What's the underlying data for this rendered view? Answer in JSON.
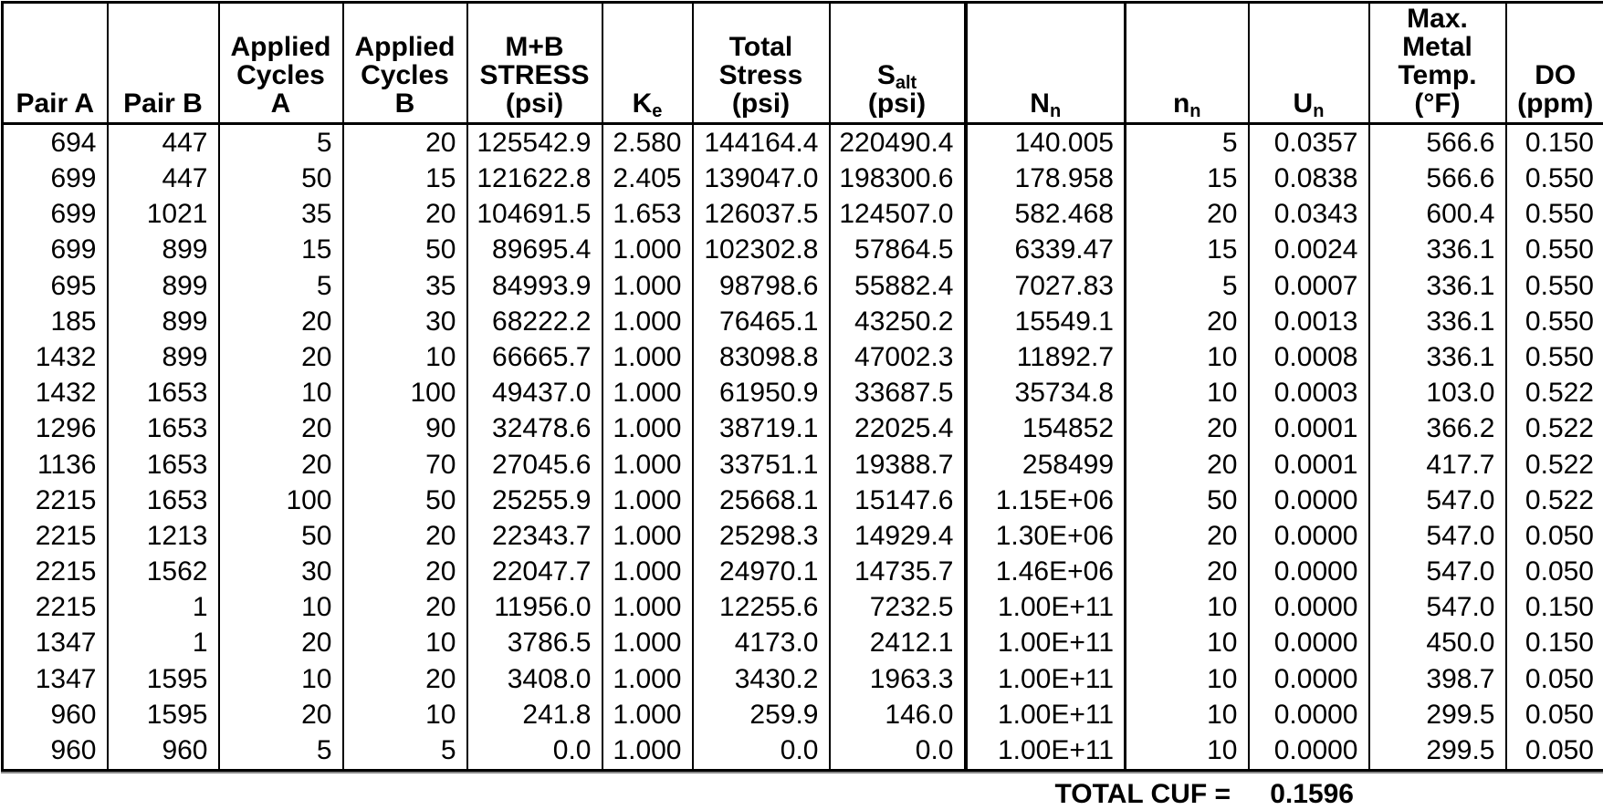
{
  "header": [
    {
      "id": "pair_a",
      "lines": [
        "Pair A"
      ]
    },
    {
      "id": "pair_b",
      "lines": [
        "Pair B"
      ]
    },
    {
      "id": "applied_cycles_a",
      "lines": [
        "Applied",
        "Cycles",
        "A"
      ]
    },
    {
      "id": "applied_cycles_b",
      "lines": [
        "Applied",
        "Cycles",
        "B"
      ]
    },
    {
      "id": "mb_stress",
      "lines": [
        "M+B",
        "STRESS",
        "(psi)"
      ]
    },
    {
      "id": "ke",
      "main": "K",
      "sub": "e"
    },
    {
      "id": "total_stress",
      "lines": [
        "Total",
        "Stress",
        "(psi)"
      ]
    },
    {
      "id": "s_alt",
      "main": "S",
      "sub": "alt",
      "unit": "(psi)"
    },
    {
      "id": "n_cap",
      "main": "N",
      "sub": "n"
    },
    {
      "id": "n_small",
      "main": "n",
      "sub": "n"
    },
    {
      "id": "u_n",
      "main": "U",
      "sub": "n"
    },
    {
      "id": "max_metal_temp",
      "lines": [
        "Max.",
        "Metal",
        "Temp.",
        "(°F)"
      ]
    },
    {
      "id": "do_ppm",
      "lines": [
        "DO",
        "(ppm)"
      ]
    }
  ],
  "chart_data": {
    "type": "table",
    "columns": [
      "Pair A",
      "Pair B",
      "Applied Cycles A",
      "Applied Cycles B",
      "M+B STRESS (psi)",
      "Ke",
      "Total Stress (psi)",
      "Salt (psi)",
      "Nn",
      "nn",
      "Un",
      "Max. Metal Temp. (°F)",
      "DO (ppm)"
    ],
    "column_ids": [
      "pair_a",
      "pair_b",
      "applied_cycles_a",
      "applied_cycles_b",
      "mb_stress",
      "ke",
      "total_stress",
      "s_alt",
      "n_cap",
      "n_small",
      "u_n",
      "max_metal_temp",
      "do_ppm"
    ],
    "rows": [
      [
        "694",
        "447",
        "5",
        "20",
        "125542.9",
        "2.580",
        "144164.4",
        "220490.4",
        "140.005",
        "5",
        "0.0357",
        "566.6",
        "0.150"
      ],
      [
        "699",
        "447",
        "50",
        "15",
        "121622.8",
        "2.405",
        "139047.0",
        "198300.6",
        "178.958",
        "15",
        "0.0838",
        "566.6",
        "0.550"
      ],
      [
        "699",
        "1021",
        "35",
        "20",
        "104691.5",
        "1.653",
        "126037.5",
        "124507.0",
        "582.468",
        "20",
        "0.0343",
        "600.4",
        "0.550"
      ],
      [
        "699",
        "899",
        "15",
        "50",
        "89695.4",
        "1.000",
        "102302.8",
        "57864.5",
        "6339.47",
        "15",
        "0.0024",
        "336.1",
        "0.550"
      ],
      [
        "695",
        "899",
        "5",
        "35",
        "84993.9",
        "1.000",
        "98798.6",
        "55882.4",
        "7027.83",
        "5",
        "0.0007",
        "336.1",
        "0.550"
      ],
      [
        "185",
        "899",
        "20",
        "30",
        "68222.2",
        "1.000",
        "76465.1",
        "43250.2",
        "15549.1",
        "20",
        "0.0013",
        "336.1",
        "0.550"
      ],
      [
        "1432",
        "899",
        "20",
        "10",
        "66665.7",
        "1.000",
        "83098.8",
        "47002.3",
        "11892.7",
        "10",
        "0.0008",
        "336.1",
        "0.550"
      ],
      [
        "1432",
        "1653",
        "10",
        "100",
        "49437.0",
        "1.000",
        "61950.9",
        "33687.5",
        "35734.8",
        "10",
        "0.0003",
        "103.0",
        "0.522"
      ],
      [
        "1296",
        "1653",
        "20",
        "90",
        "32478.6",
        "1.000",
        "38719.1",
        "22025.4",
        "154852",
        "20",
        "0.0001",
        "366.2",
        "0.522"
      ],
      [
        "1136",
        "1653",
        "20",
        "70",
        "27045.6",
        "1.000",
        "33751.1",
        "19388.7",
        "258499",
        "20",
        "0.0001",
        "417.7",
        "0.522"
      ],
      [
        "2215",
        "1653",
        "100",
        "50",
        "25255.9",
        "1.000",
        "25668.1",
        "15147.6",
        "1.15E+06",
        "50",
        "0.0000",
        "547.0",
        "0.522"
      ],
      [
        "2215",
        "1213",
        "50",
        "20",
        "22343.7",
        "1.000",
        "25298.3",
        "14929.4",
        "1.30E+06",
        "20",
        "0.0000",
        "547.0",
        "0.050"
      ],
      [
        "2215",
        "1562",
        "30",
        "20",
        "22047.7",
        "1.000",
        "24970.1",
        "14735.7",
        "1.46E+06",
        "20",
        "0.0000",
        "547.0",
        "0.050"
      ],
      [
        "2215",
        "1",
        "10",
        "20",
        "11956.0",
        "1.000",
        "12255.6",
        "7232.5",
        "1.00E+11",
        "10",
        "0.0000",
        "547.0",
        "0.150"
      ],
      [
        "1347",
        "1",
        "20",
        "10",
        "3786.5",
        "1.000",
        "4173.0",
        "2412.1",
        "1.00E+11",
        "10",
        "0.0000",
        "450.0",
        "0.150"
      ],
      [
        "1347",
        "1595",
        "10",
        "20",
        "3408.0",
        "1.000",
        "3430.2",
        "1963.3",
        "1.00E+11",
        "10",
        "0.0000",
        "398.7",
        "0.050"
      ],
      [
        "960",
        "1595",
        "20",
        "10",
        "241.8",
        "1.000",
        "259.9",
        "146.0",
        "1.00E+11",
        "10",
        "0.0000",
        "299.5",
        "0.050"
      ],
      [
        "960",
        "960",
        "5",
        "5",
        "0.0",
        "1.000",
        "0.0",
        "0.0",
        "1.00E+11",
        "10",
        "0.0000",
        "299.5",
        "0.050"
      ]
    ],
    "total_label": "TOTAL CUF =",
    "total_value": "0.1596"
  }
}
